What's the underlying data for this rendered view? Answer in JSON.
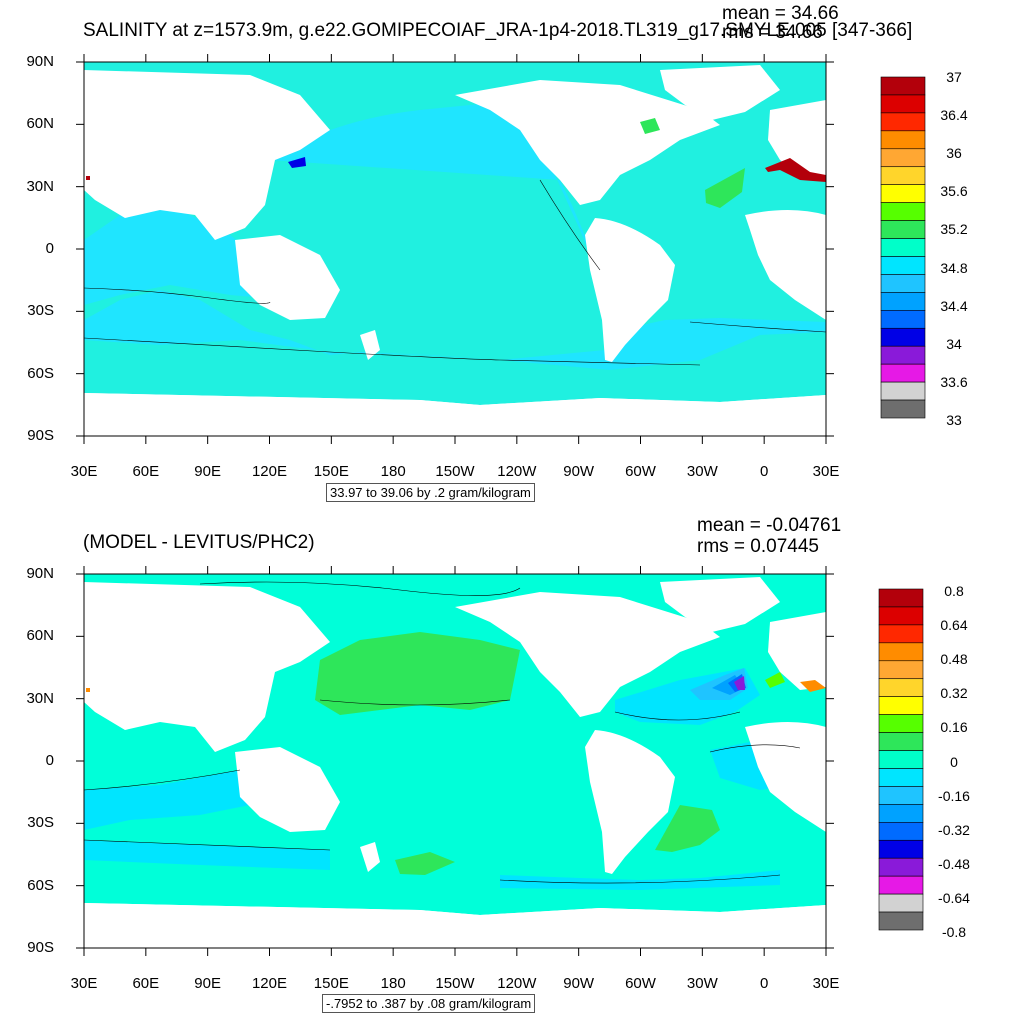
{
  "top_panel": {
    "title": "SALINITY at z=1573.9m, g.e22.GOMIPECOIAF_JRA-1p4-2018.TL319_g17.SMYLE.005 [347-366]",
    "mean": "mean = 34.66",
    "rms": "rms = 34.66",
    "info": "33.97 to 39.06 by .2 gram/kilogram",
    "colorbar_labels": [
      "37",
      "36.4",
      "36",
      "35.6",
      "35.2",
      "34.8",
      "34.4",
      "34",
      "33.6",
      "33"
    ],
    "colorbar_colors": [
      "#b3000b",
      "#dc0000",
      "#ff2800",
      "#ff8c00",
      "#ffa733",
      "#ffd52b",
      "#ffff00",
      "#56ff00",
      "#2ee65a",
      "#00ffc9",
      "#00e5ff",
      "#1fc4ff",
      "#00a2ff",
      "#006bff",
      "#0000e6",
      "#8a1ad9",
      "#e619e6",
      "#d2d2d2",
      "#6e6e6e"
    ]
  },
  "bottom_panel": {
    "title": "(MODEL - LEVITUS/PHC2)",
    "mean": "mean = -0.04761",
    "rms": "rms = 0.07445",
    "info": "-.7952 to .387 by .08 gram/kilogram",
    "colorbar_labels": [
      "0.8",
      "0.64",
      "0.48",
      "0.32",
      "0.16",
      "0",
      "-0.16",
      "-0.32",
      "-0.48",
      "-0.64",
      "-0.8"
    ],
    "colorbar_colors": [
      "#b3000b",
      "#dc0000",
      "#ff2800",
      "#ff8c00",
      "#ffa733",
      "#ffd52b",
      "#ffff00",
      "#56ff00",
      "#2ee65a",
      "#00ffc9",
      "#00e5ff",
      "#1fc4ff",
      "#00a2ff",
      "#006bff",
      "#0000e6",
      "#8a1ad9",
      "#e619e6",
      "#d2d2d2",
      "#6e6e6e"
    ]
  },
  "lat_labels": [
    "90N",
    "60N",
    "30N",
    "0",
    "30S",
    "60S",
    "90S"
  ],
  "lon_labels": [
    "30E",
    "60E",
    "90E",
    "120E",
    "150E",
    "180",
    "150W",
    "120W",
    "90W",
    "60W",
    "30W",
    "0",
    "30E"
  ],
  "colors": {
    "ocean_top_pacific": "#1fe5ff",
    "ocean_top_general": "#20f0e0",
    "ocean_bottom": "#00ffd9",
    "land": "#ffffff",
    "positive_anomaly": "#2ee65a",
    "negative_anomaly": "#00e5ff"
  }
}
